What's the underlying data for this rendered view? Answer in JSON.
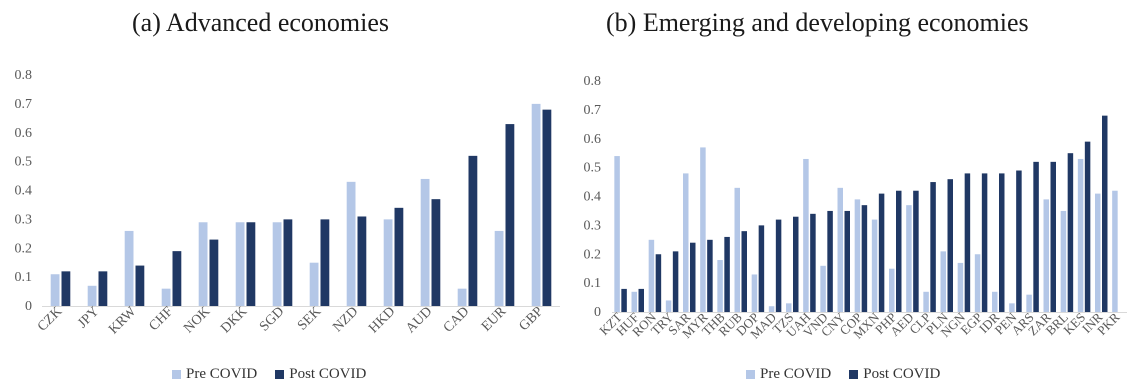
{
  "colors": {
    "pre": "#b4c7e7",
    "post": "#203864",
    "axis": "#d9d9d9",
    "tick_text": "#595959"
  },
  "legend": {
    "pre_label": "Pre COVID",
    "post_label": "Post COVID"
  },
  "chart_data": [
    {
      "type": "bar",
      "title": "(a) Advanced economies",
      "ylim": [
        0,
        0.8
      ],
      "yticks": [
        "0",
        "0.1",
        "0.2",
        "0.3",
        "0.4",
        "0.5",
        "0.6",
        "0.7",
        "0.8"
      ],
      "grid": false,
      "legend_position": "bottom",
      "categories": [
        "CZK",
        "JPY",
        "KRW",
        "CHF",
        "NOK",
        "DKK",
        "SGD",
        "SEK",
        "NZD",
        "HKD",
        "AUD",
        "CAD",
        "EUR",
        "GBP"
      ],
      "series": [
        {
          "name": "Pre COVID",
          "values": [
            0.11,
            0.07,
            0.26,
            0.06,
            0.29,
            0.29,
            0.29,
            0.15,
            0.43,
            0.3,
            0.44,
            0.06,
            0.26,
            0.7
          ]
        },
        {
          "name": "Post COVID",
          "values": [
            0.12,
            0.12,
            0.14,
            0.19,
            0.23,
            0.29,
            0.3,
            0.3,
            0.31,
            0.34,
            0.37,
            0.52,
            0.63,
            0.68
          ]
        }
      ]
    },
    {
      "type": "bar",
      "title": "(b) Emerging and developing economies",
      "ylim": [
        0,
        0.8
      ],
      "yticks": [
        "0",
        "0.1",
        "0.2",
        "0.3",
        "0.4",
        "0.5",
        "0.6",
        "0.7",
        "0.8"
      ],
      "grid": false,
      "legend_position": "bottom",
      "categories": [
        "KZT",
        "HUF",
        "RON",
        "TRY",
        "SAR",
        "MYR",
        "THB",
        "RUB",
        "DOP",
        "MAD",
        "TZS",
        "UAH",
        "VND",
        "CNY",
        "COP",
        "MXN",
        "PHP",
        "AED",
        "CLP",
        "PLN",
        "NGN",
        "EGP",
        "IDR",
        "PEN",
        "ARS",
        "ZAR",
        "BRL",
        "KES",
        "INR",
        "PKR"
      ],
      "series": [
        {
          "name": "Pre COVID",
          "values": [
            0.54,
            0.07,
            0.25,
            0.04,
            0.48,
            0.57,
            0.18,
            0.43,
            0.13,
            0.02,
            0.03,
            0.53,
            0.16,
            0.43,
            0.39,
            0.32,
            0.15,
            0.37,
            0.07,
            0.21,
            0.17,
            0.2,
            0.07,
            0.03,
            0.06,
            0.39,
            0.35,
            0.53,
            0.41,
            0.42
          ]
        },
        {
          "name": "Post COVID",
          "values": [
            0.08,
            0.08,
            0.2,
            0.21,
            0.24,
            0.25,
            0.26,
            0.28,
            0.3,
            0.32,
            0.33,
            0.34,
            0.35,
            0.35,
            0.37,
            0.41,
            0.42,
            0.42,
            0.45,
            0.46,
            0.48,
            0.48,
            0.48,
            0.49,
            0.52,
            0.52,
            0.55,
            0.59,
            0.68,
            null
          ]
        }
      ]
    }
  ]
}
